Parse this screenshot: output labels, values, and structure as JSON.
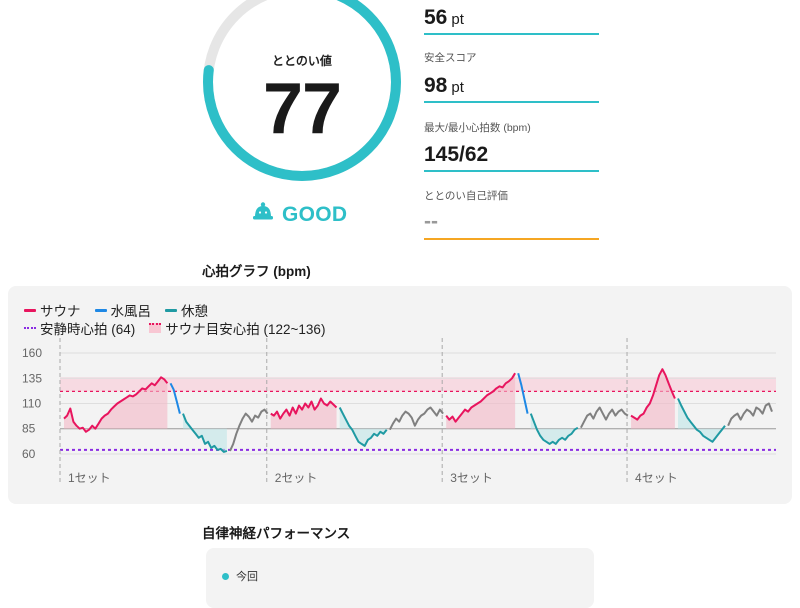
{
  "score": {
    "label": "ととのい値",
    "value": "77",
    "progress": 0.77
  },
  "rating": {
    "text": "GOOD",
    "icon": "sauna-hat-icon",
    "color": "#2ebfc8"
  },
  "metrics": [
    {
      "label": "",
      "value": "56",
      "unit": "pt"
    },
    {
      "label": "安全スコア",
      "value": "98",
      "unit": "pt"
    },
    {
      "label": "最大/最小心拍数 (bpm)",
      "value": "145/62",
      "unit": ""
    },
    {
      "label": "ととのい自己評価",
      "value": "--",
      "unit": ""
    }
  ],
  "heart_section": {
    "title": "心拍グラフ (bpm)"
  },
  "legend": {
    "sauna": "サウナ",
    "cold_bath": "水風呂",
    "rest": "休憩",
    "resting_hr": "安静時心拍 (64)",
    "sauna_target": "サウナ目安心拍 (122~136)"
  },
  "colors": {
    "sauna": "#e8155e",
    "cold_bath": "#1e88e5",
    "rest": "#1f9aa3",
    "other": "#808080",
    "resting": "#8a2be2",
    "target": "#e8155e",
    "accent": "#2ebfc8"
  },
  "chart_data": {
    "type": "line",
    "ylim": [
      55,
      165
    ],
    "yticks": [
      "160",
      "135",
      "110",
      "85",
      "60"
    ],
    "ytick_values": [
      160,
      135,
      110,
      85,
      60
    ],
    "resting_hr": 64,
    "target_band": [
      122,
      136
    ],
    "sets": [
      "1セット",
      "2セット",
      "3セット",
      "4セット"
    ],
    "segments": [
      {
        "phase": "sauna",
        "values": [
          95,
          98,
          105,
          92,
          88,
          85,
          86,
          82,
          84,
          88,
          85,
          90,
          95,
          98,
          100,
          104,
          107,
          110,
          112,
          114,
          116,
          118,
          117,
          119,
          122,
          125,
          124,
          127,
          130,
          128,
          132,
          136,
          134,
          130
        ]
      },
      {
        "phase": "cold_bath",
        "values": [
          130,
          124,
          112,
          100
        ]
      },
      {
        "phase": "rest",
        "values": [
          100,
          92,
          88,
          84,
          80,
          76,
          78,
          70,
          72,
          66,
          68,
          64,
          65,
          62,
          63
        ]
      },
      {
        "phase": "other",
        "values": [
          63,
          70,
          80,
          88,
          95,
          100,
          97,
          92,
          98,
          96,
          102,
          104,
          100
        ]
      },
      {
        "phase": "sauna",
        "values": [
          100,
          98,
          102,
          95,
          100,
          104,
          98,
          106,
          100,
          108,
          104,
          110,
          106,
          112,
          104,
          108,
          115,
          110,
          108,
          112,
          109,
          106
        ]
      },
      {
        "phase": "rest",
        "values": [
          106,
          100,
          94,
          88,
          84,
          78,
          72,
          70,
          68,
          74,
          76,
          80,
          78,
          82,
          80,
          84
        ]
      },
      {
        "phase": "other",
        "values": [
          84,
          90,
          95,
          92,
          98,
          102,
          100,
          96,
          88,
          94,
          98,
          100,
          104,
          106,
          102,
          98,
          104,
          100
        ]
      },
      {
        "phase": "sauna",
        "values": [
          98,
          94,
          97,
          92,
          96,
          100,
          104,
          102,
          106,
          108,
          110,
          112,
          115,
          118,
          120,
          122,
          125,
          127,
          126,
          130,
          132,
          135,
          140
        ]
      },
      {
        "phase": "cold_bath",
        "values": [
          140,
          128,
          114,
          100
        ]
      },
      {
        "phase": "rest",
        "values": [
          100,
          92,
          84,
          78,
          74,
          72,
          70,
          72,
          70,
          74,
          76,
          74,
          78,
          80,
          84,
          86
        ]
      },
      {
        "phase": "other",
        "values": [
          86,
          92,
          98,
          100,
          95,
          102,
          106,
          100,
          94,
          100,
          104,
          98,
          102,
          104,
          100,
          98
        ]
      },
      {
        "phase": "sauna",
        "values": [
          98,
          96,
          94,
          98,
          100,
          106,
          110,
          118,
          128,
          138,
          144,
          138,
          130,
          122,
          115
        ]
      },
      {
        "phase": "rest",
        "values": [
          115,
          108,
          102,
          96,
          92,
          88,
          84,
          82,
          78,
          76,
          74,
          72,
          76,
          80,
          84,
          88
        ]
      },
      {
        "phase": "other",
        "values": [
          88,
          95,
          98,
          100,
          94,
          100,
          104,
          102,
          98,
          106,
          104,
          100,
          108,
          110,
          102
        ]
      }
    ]
  },
  "perf_section": {
    "title": "自律神経パフォーマンス",
    "legend_current": "今回"
  }
}
